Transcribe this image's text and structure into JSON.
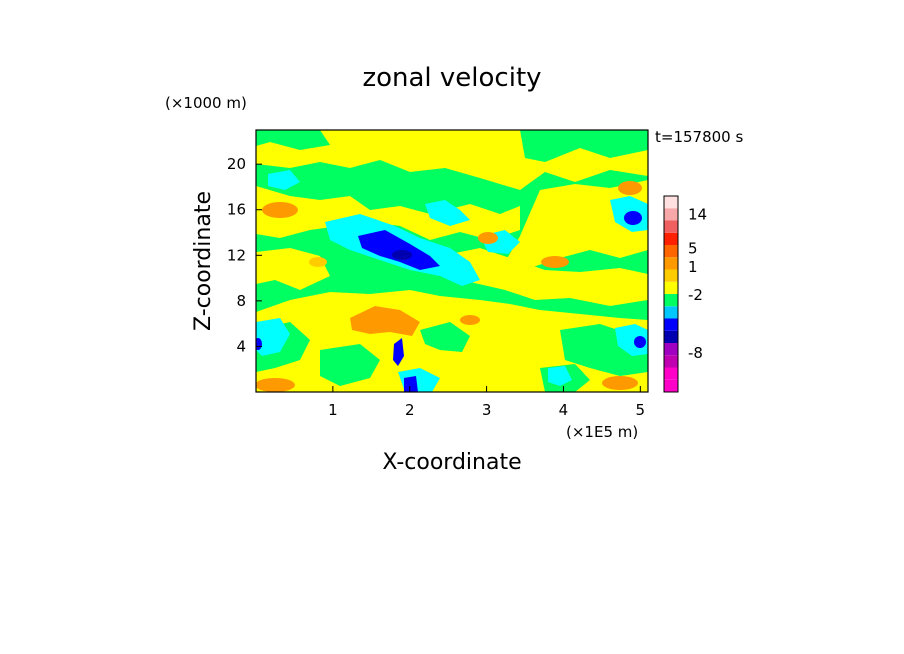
{
  "chart_data": {
    "type": "heatmap",
    "title": "zonal velocity",
    "time_label": "t=157800 s",
    "xlabel": "X-coordinate",
    "ylabel": "Z-coordinate",
    "x_unit": "(×1E5 m)",
    "y_unit": "(×1000 m)",
    "xlim": [
      0,
      5.1
    ],
    "ylim": [
      0,
      23
    ],
    "x_ticks": [
      1,
      2,
      3,
      4,
      5
    ],
    "y_ticks": [
      4,
      8,
      12,
      16,
      20
    ],
    "colorbar": {
      "levels": [
        {
          "color": "#ff00c8"
        },
        {
          "color": "#ff00c8"
        },
        {
          "color": "#c000b0"
        },
        {
          "color": "#a000c0"
        },
        {
          "color": "#0000b0"
        },
        {
          "color": "#0000ff"
        },
        {
          "color": "#00c8ff"
        },
        {
          "color": "#00ff60"
        },
        {
          "color": "#ffff00"
        },
        {
          "color": "#ffcc00"
        },
        {
          "color": "#ff9900"
        },
        {
          "color": "#ff6600"
        },
        {
          "color": "#ff2000"
        },
        {
          "color": "#f06060"
        },
        {
          "color": "#f8a8a8"
        },
        {
          "color": "#ffe0e0"
        }
      ],
      "tick_labels": [
        "14",
        "5",
        "1",
        "-2",
        "-8"
      ],
      "tick_level_index": [
        14.5,
        11.7,
        10.2,
        7.9,
        3.2
      ]
    },
    "colors": {
      "background_field": "#00ff60",
      "yellow": "#ffff00",
      "cyan": "#00ffff",
      "orange": "#ff9900",
      "blue": "#0000ff",
      "darkblue": "#0000b0"
    }
  }
}
